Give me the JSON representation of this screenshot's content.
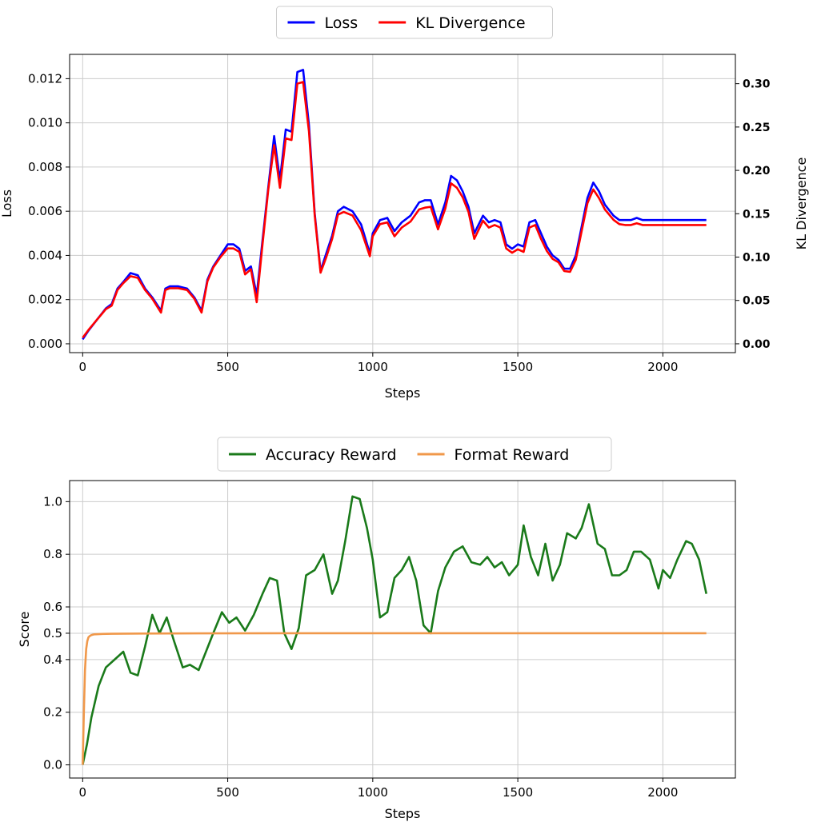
{
  "chart_data": [
    {
      "type": "line",
      "xlabel": "Steps",
      "ylabel": "Loss",
      "y2label": "KL Divergence",
      "xlim": [
        -45,
        2250
      ],
      "ylim": [
        -0.0004,
        0.0131
      ],
      "y2lim": [
        -0.0102,
        0.3338
      ],
      "xticks": [
        0,
        500,
        1000,
        1500,
        2000
      ],
      "yticks": [
        0.0,
        0.002,
        0.004,
        0.006,
        0.008,
        0.01,
        0.012
      ],
      "ytick_labels": [
        "0.000",
        "0.002",
        "0.004",
        "0.006",
        "0.008",
        "0.010",
        "0.012"
      ],
      "y2ticks": [
        0.0,
        0.05,
        0.1,
        0.15,
        0.2,
        0.25,
        0.3
      ],
      "y2tick_labels": [
        "0.00",
        "0.05",
        "0.10",
        "0.15",
        "0.20",
        "0.25",
        "0.30"
      ],
      "grid": true,
      "legend": "top-center",
      "series": [
        {
          "name": "Loss",
          "axis": "left",
          "color": "#0000ff",
          "x": [
            0,
            20,
            50,
            80,
            100,
            120,
            140,
            165,
            190,
            215,
            240,
            270,
            285,
            300,
            330,
            360,
            385,
            410,
            430,
            450,
            475,
            500,
            520,
            540,
            560,
            580,
            600,
            620,
            640,
            660,
            680,
            700,
            720,
            740,
            760,
            780,
            800,
            820,
            840,
            860,
            880,
            900,
            930,
            960,
            990,
            1000,
            1025,
            1050,
            1075,
            1100,
            1130,
            1160,
            1180,
            1200,
            1225,
            1250,
            1270,
            1290,
            1310,
            1330,
            1350,
            1380,
            1400,
            1420,
            1440,
            1460,
            1480,
            1500,
            1520,
            1540,
            1560,
            1580,
            1600,
            1620,
            1640,
            1660,
            1680,
            1700,
            1720,
            1740,
            1760,
            1780,
            1800,
            1830,
            1850,
            1870,
            1890,
            1910,
            1930,
            1960,
            1990,
            2000,
            2025,
            2050,
            2075,
            2100,
            2125,
            2150
          ],
          "values": [
            0.0002,
            0.0006,
            0.0011,
            0.0016,
            0.0018,
            0.0025,
            0.0028,
            0.0032,
            0.0031,
            0.0025,
            0.0021,
            0.0015,
            0.0025,
            0.0026,
            0.0026,
            0.0025,
            0.0021,
            0.0015,
            0.0029,
            0.0035,
            0.004,
            0.0045,
            0.0045,
            0.0043,
            0.0033,
            0.0035,
            0.0022,
            0.0047,
            0.0071,
            0.0094,
            0.0074,
            0.0097,
            0.0096,
            0.0123,
            0.0124,
            0.0099,
            0.0059,
            0.0033,
            0.0041,
            0.0049,
            0.006,
            0.0062,
            0.006,
            0.0054,
            0.0041,
            0.005,
            0.0056,
            0.0057,
            0.0051,
            0.0055,
            0.0058,
            0.0064,
            0.0065,
            0.0065,
            0.0054,
            0.0064,
            0.0076,
            0.0074,
            0.0069,
            0.0062,
            0.005,
            0.0058,
            0.0055,
            0.0056,
            0.0055,
            0.0045,
            0.0043,
            0.0045,
            0.0044,
            0.0055,
            0.0056,
            0.005,
            0.0044,
            0.004,
            0.0038,
            0.0034,
            0.0034,
            0.004,
            0.0053,
            0.0066,
            0.0073,
            0.0069,
            0.0063,
            0.0058,
            0.0056,
            0.0056,
            0.0056,
            0.0057,
            0.0056,
            0.0056,
            0.0056,
            0.0056,
            0.0056,
            0.0056,
            0.0056,
            0.0056,
            0.0056,
            0.0056
          ]
        },
        {
          "name": "KL Divergence",
          "axis": "right",
          "color": "#ff0000",
          "x": [
            0,
            20,
            50,
            80,
            100,
            120,
            140,
            165,
            190,
            215,
            240,
            270,
            285,
            300,
            330,
            360,
            385,
            410,
            430,
            450,
            475,
            500,
            520,
            540,
            560,
            580,
            600,
            620,
            640,
            660,
            680,
            700,
            720,
            740,
            760,
            780,
            800,
            820,
            840,
            860,
            880,
            900,
            930,
            960,
            990,
            1000,
            1025,
            1050,
            1075,
            1100,
            1130,
            1160,
            1180,
            1200,
            1225,
            1250,
            1270,
            1290,
            1310,
            1330,
            1350,
            1380,
            1400,
            1420,
            1440,
            1460,
            1480,
            1500,
            1520,
            1540,
            1560,
            1580,
            1600,
            1620,
            1640,
            1660,
            1680,
            1700,
            1720,
            1740,
            1760,
            1780,
            1800,
            1830,
            1850,
            1870,
            1890,
            1910,
            1930,
            1960,
            1990,
            2000,
            2025,
            2050,
            2075,
            2100,
            2125,
            2150
          ],
          "values": [
            0.007,
            0.016,
            0.028,
            0.04,
            0.044,
            0.062,
            0.07,
            0.078,
            0.076,
            0.062,
            0.052,
            0.036,
            0.062,
            0.064,
            0.064,
            0.062,
            0.052,
            0.036,
            0.072,
            0.088,
            0.1,
            0.11,
            0.11,
            0.106,
            0.08,
            0.086,
            0.048,
            0.115,
            0.178,
            0.229,
            0.18,
            0.237,
            0.235,
            0.3,
            0.302,
            0.245,
            0.148,
            0.082,
            0.1,
            0.121,
            0.149,
            0.152,
            0.148,
            0.131,
            0.101,
            0.124,
            0.138,
            0.14,
            0.124,
            0.134,
            0.141,
            0.155,
            0.157,
            0.158,
            0.132,
            0.156,
            0.185,
            0.18,
            0.169,
            0.152,
            0.121,
            0.142,
            0.134,
            0.137,
            0.134,
            0.11,
            0.105,
            0.109,
            0.106,
            0.134,
            0.137,
            0.121,
            0.107,
            0.098,
            0.094,
            0.084,
            0.083,
            0.097,
            0.13,
            0.162,
            0.178,
            0.168,
            0.155,
            0.143,
            0.138,
            0.137,
            0.137,
            0.139,
            0.137,
            0.137,
            0.137,
            0.137,
            0.137,
            0.137,
            0.137,
            0.137,
            0.137,
            0.137
          ]
        }
      ]
    },
    {
      "type": "line",
      "xlabel": "Steps",
      "ylabel": "Score",
      "xlim": [
        -45,
        2250
      ],
      "ylim": [
        -0.05,
        1.08
      ],
      "xticks": [
        0,
        500,
        1000,
        1500,
        2000
      ],
      "yticks": [
        0.0,
        0.2,
        0.4,
        0.5,
        0.6,
        0.8,
        1.0
      ],
      "ytick_labels": [
        "0.0",
        "0.2",
        "0.4",
        "0.5",
        "0.6",
        "0.8",
        "1.0"
      ],
      "grid": true,
      "legend": "top-center",
      "series": [
        {
          "name": "Accuracy Reward",
          "color": "#1a7a1a",
          "x": [
            0,
            15,
            30,
            55,
            80,
            110,
            140,
            165,
            190,
            215,
            240,
            265,
            290,
            315,
            345,
            370,
            400,
            425,
            450,
            480,
            505,
            530,
            560,
            590,
            620,
            645,
            670,
            695,
            720,
            745,
            770,
            800,
            830,
            860,
            880,
            905,
            930,
            955,
            980,
            1000,
            1025,
            1050,
            1075,
            1100,
            1125,
            1150,
            1175,
            1200,
            1225,
            1250,
            1280,
            1310,
            1340,
            1370,
            1395,
            1420,
            1445,
            1470,
            1500,
            1520,
            1545,
            1570,
            1595,
            1620,
            1645,
            1670,
            1700,
            1720,
            1745,
            1775,
            1800,
            1825,
            1850,
            1875,
            1900,
            1925,
            1955,
            1985,
            2000,
            2025,
            2050,
            2080,
            2100,
            2125,
            2150
          ],
          "values": [
            0.0,
            0.08,
            0.18,
            0.3,
            0.37,
            0.4,
            0.43,
            0.35,
            0.34,
            0.45,
            0.57,
            0.5,
            0.56,
            0.47,
            0.37,
            0.38,
            0.36,
            0.43,
            0.5,
            0.58,
            0.54,
            0.56,
            0.51,
            0.57,
            0.65,
            0.71,
            0.7,
            0.5,
            0.44,
            0.52,
            0.72,
            0.74,
            0.8,
            0.65,
            0.7,
            0.85,
            1.02,
            1.01,
            0.9,
            0.78,
            0.56,
            0.58,
            0.71,
            0.74,
            0.79,
            0.7,
            0.53,
            0.5,
            0.66,
            0.75,
            0.81,
            0.83,
            0.77,
            0.76,
            0.79,
            0.75,
            0.77,
            0.72,
            0.76,
            0.91,
            0.79,
            0.72,
            0.84,
            0.7,
            0.76,
            0.88,
            0.86,
            0.9,
            0.99,
            0.84,
            0.82,
            0.72,
            0.72,
            0.74,
            0.81,
            0.81,
            0.78,
            0.67,
            0.74,
            0.71,
            0.78,
            0.85,
            0.84,
            0.78,
            0.65
          ]
        },
        {
          "name": "Format Reward",
          "color": "#f0984a",
          "x": [
            0,
            4,
            8,
            12,
            16,
            20,
            25,
            30,
            40,
            60,
            100,
            200,
            400,
            700,
            1000,
            1500,
            2000,
            2150
          ],
          "values": [
            0.0,
            0.2,
            0.36,
            0.44,
            0.47,
            0.485,
            0.49,
            0.493,
            0.496,
            0.497,
            0.498,
            0.499,
            0.4995,
            0.5,
            0.5,
            0.5,
            0.5,
            0.5
          ]
        }
      ]
    }
  ]
}
